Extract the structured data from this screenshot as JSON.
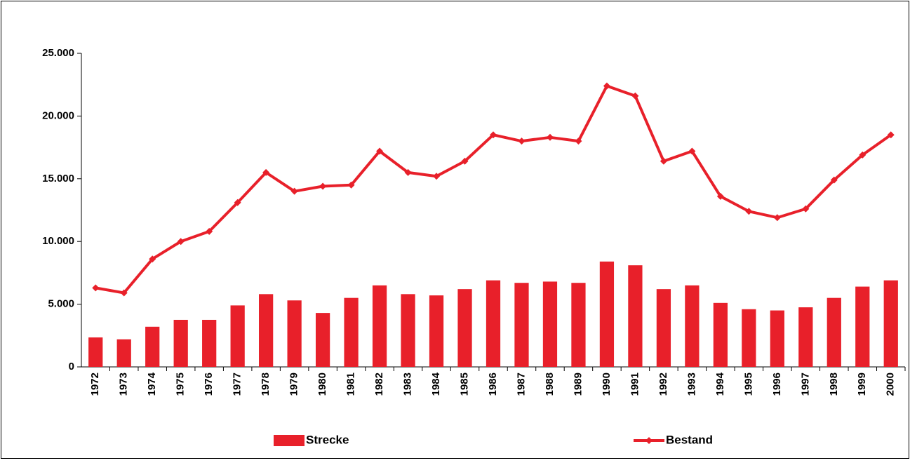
{
  "chart_data": {
    "type": "bar_line",
    "categories": [
      "1972",
      "1973",
      "1974",
      "1975",
      "1976",
      "1977",
      "1978",
      "1979",
      "1980",
      "1981",
      "1982",
      "1983",
      "1984",
      "1985",
      "1986",
      "1987",
      "1988",
      "1989",
      "1990",
      "1991",
      "1992",
      "1993",
      "1994",
      "1995",
      "1996",
      "1997",
      "1998",
      "1999",
      "2000"
    ],
    "series": [
      {
        "name": "Strecke",
        "type": "bar",
        "color": "#e8202a",
        "values": [
          2350,
          2200,
          3200,
          3750,
          3750,
          4900,
          5800,
          5300,
          4300,
          5500,
          6500,
          5800,
          5700,
          6200,
          6900,
          6700,
          6800,
          6700,
          8400,
          8100,
          6200,
          6500,
          5100,
          4600,
          4500,
          4750,
          5500,
          6400,
          6900
        ]
      },
      {
        "name": "Bestand",
        "type": "line",
        "color": "#e8202a",
        "values": [
          6300,
          5900,
          8600,
          10000,
          10800,
          13100,
          15500,
          14000,
          14400,
          14500,
          17200,
          15500,
          15200,
          16400,
          18500,
          18000,
          18300,
          18000,
          22400,
          21600,
          16400,
          17200,
          13600,
          12400,
          11900,
          12600,
          14900,
          16900,
          18500
        ]
      }
    ],
    "ylim": [
      0,
      25000
    ],
    "yticks": [
      0,
      {
        "value": 5000,
        "label": "5.000"
      },
      {
        "value": 10000,
        "label": "10.000"
      },
      {
        "value": 15000,
        "label": "15.000"
      },
      {
        "value": 20000,
        "label": "20.000"
      },
      {
        "value": 25000,
        "label": "25.000"
      }
    ],
    "grid": false,
    "legend": "bottom"
  }
}
